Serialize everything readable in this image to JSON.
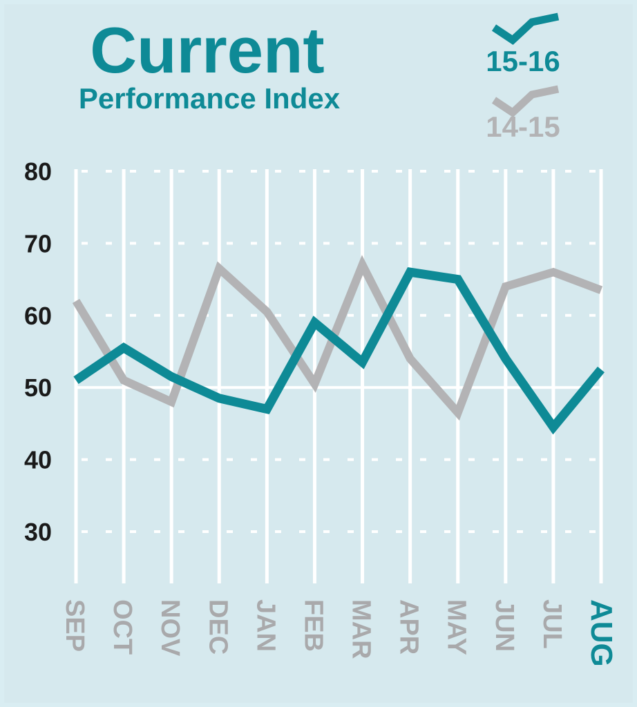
{
  "chart_data": {
    "type": "line",
    "title": "Current",
    "subtitle": "Performance Index",
    "categories": [
      "SEP",
      "OCT",
      "NOV",
      "DEC",
      "JAN",
      "FEB",
      "MAR",
      "APR",
      "MAY",
      "JUN",
      "JUL",
      "AUG"
    ],
    "highlight_category": "AUG",
    "series": [
      {
        "name": "15-16",
        "values": [
          51,
          55.5,
          51.5,
          48.5,
          47,
          59,
          53.5,
          66,
          65,
          54,
          44.5,
          52.5
        ],
        "color": "#0e8a96"
      },
      {
        "name": "14-15",
        "values": [
          62,
          51,
          48,
          66.5,
          60.5,
          50.5,
          67,
          54,
          46.5,
          64,
          66,
          63.5
        ],
        "color": "#b3b3b5"
      }
    ],
    "y_ticks": [
      "30",
      "40",
      "50",
      "60",
      "70",
      "80"
    ],
    "ylim": [
      22,
      80
    ],
    "grid": true,
    "legend_position": "top-right",
    "colors": {
      "background": "#d6e9ee",
      "frame": "#d9edf2",
      "grid": "#ffffff",
      "tick_text": "#1a1a1a",
      "month_text": "#a9a9ab",
      "accent": "#0e8a96",
      "secondary": "#b3b3b5"
    }
  }
}
